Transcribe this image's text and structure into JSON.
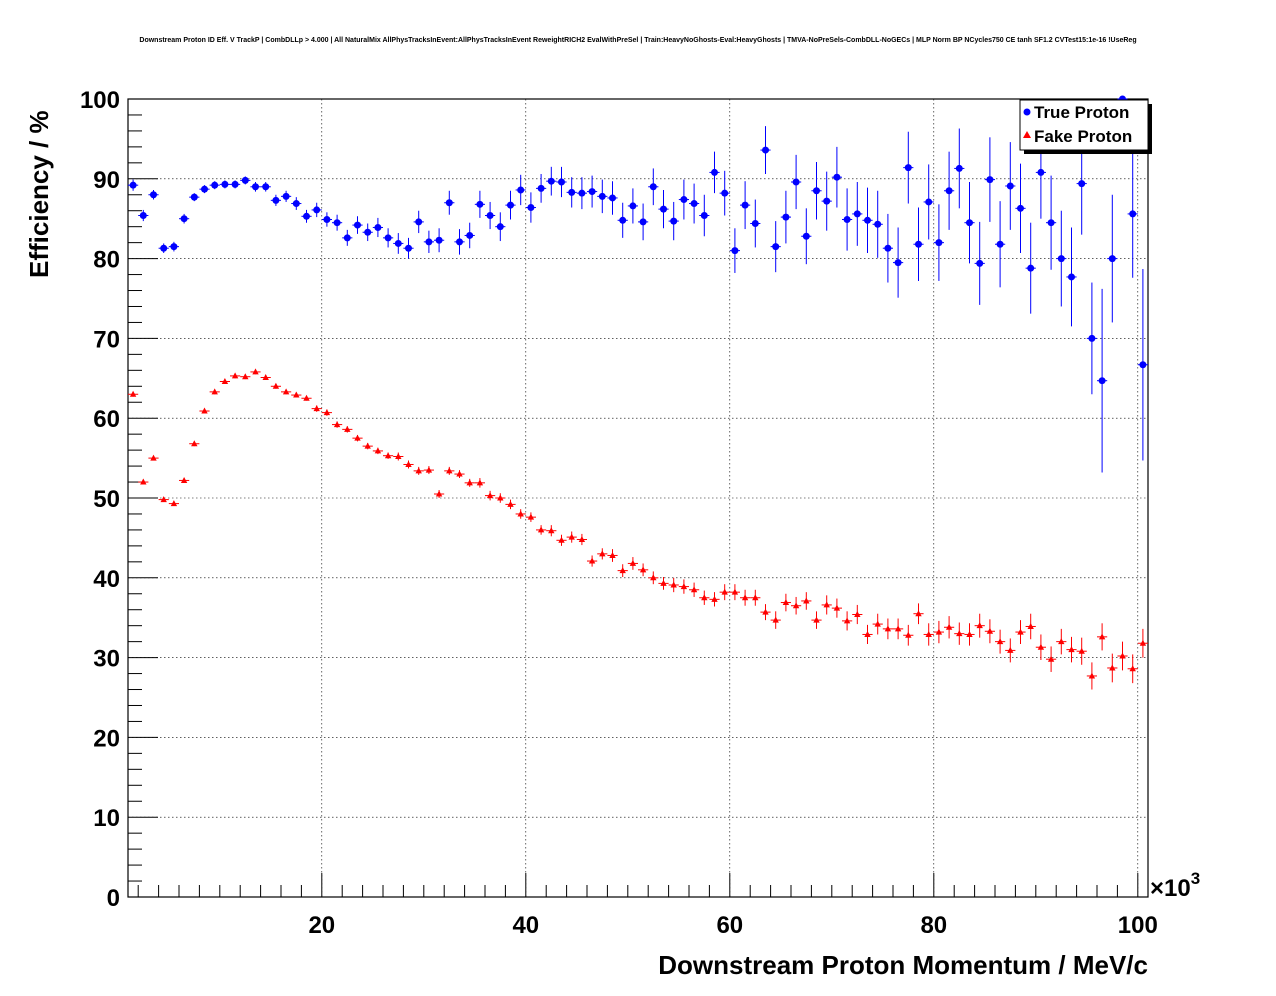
{
  "chart_data": {
    "type": "scatter",
    "title": "Downstream Proton ID Eff. V TrackP | CombDLLp > 4.000 | All NaturalMix AllPhysTracksInEvent:AllPhysTracksInEvent ReweightRICH2 EvalWithPreSel | Train:HeavyNoGhosts-Eval:HeavyGhosts | TMVA-NoPreSels-CombDLL-NoGECs | MLP Norm BP NCycles750 CE tanh SF1.2 CVTest15:1e-16 !UseReg",
    "xlabel": "Downstream Proton Momentum / MeV/c",
    "ylabel": "Efficiency / %",
    "x_multiplier": "×10",
    "x_multiplier_exp": "3",
    "xlim": [
      1000,
      101000
    ],
    "ylim": [
      0,
      100
    ],
    "x_ticks": [
      20,
      40,
      60,
      80,
      100
    ],
    "y_ticks": [
      0,
      10,
      20,
      30,
      40,
      50,
      60,
      70,
      80,
      90,
      100
    ],
    "grid": true,
    "legend_position": "top-right",
    "bin_width": 1000,
    "x_start": 1500,
    "series": [
      {
        "name": "True Proton",
        "color": "#0000ff",
        "marker": "circle",
        "values": [
          89.2,
          85.4,
          88.0,
          81.3,
          81.5,
          85.0,
          87.7,
          88.7,
          89.2,
          89.3,
          89.3,
          89.8,
          89.0,
          89.0,
          87.3,
          87.8,
          86.9,
          85.3,
          86.1,
          84.9,
          84.5,
          82.6,
          84.2,
          83.3,
          83.9,
          82.6,
          81.9,
          81.3,
          84.6,
          82.1,
          82.3,
          87.0,
          82.1,
          82.9,
          86.8,
          85.4,
          84.0,
          86.7,
          88.6,
          86.4,
          88.8,
          89.7,
          89.6,
          88.3,
          88.2,
          88.4,
          87.8,
          87.6,
          84.8,
          86.6,
          84.6,
          89.0,
          86.2,
          84.7,
          87.4,
          86.9,
          85.4,
          90.8,
          88.2,
          81.0,
          86.7,
          84.4,
          93.6,
          81.5,
          85.2,
          89.6,
          82.8,
          88.5,
          87.2,
          90.2,
          84.9,
          85.6,
          84.8,
          84.3,
          81.3,
          79.5,
          91.4,
          81.8,
          87.1,
          82.0,
          88.5,
          91.3,
          84.5,
          79.4,
          89.9,
          81.8,
          89.1,
          86.3,
          78.8,
          90.8,
          84.5,
          80.0,
          77.7,
          89.4,
          70.0,
          64.7,
          80.0,
          100.0,
          85.6,
          66.7
        ],
        "errors": [
          0.7,
          0.7,
          0.6,
          0.6,
          0.6,
          0.6,
          0.5,
          0.5,
          0.5,
          0.5,
          0.5,
          0.5,
          0.6,
          0.6,
          0.7,
          0.7,
          0.8,
          0.8,
          0.9,
          0.9,
          1.0,
          1.0,
          1.1,
          1.1,
          1.2,
          1.2,
          1.3,
          1.3,
          1.4,
          1.4,
          1.5,
          1.5,
          1.6,
          1.6,
          1.7,
          1.7,
          1.8,
          1.8,
          1.9,
          1.9,
          1.8,
          1.8,
          1.9,
          1.9,
          2.0,
          2.0,
          2.1,
          2.1,
          2.2,
          2.2,
          2.3,
          2.3,
          2.4,
          2.4,
          2.5,
          2.5,
          2.6,
          2.6,
          2.8,
          2.8,
          3.0,
          3.0,
          3.0,
          3.2,
          3.3,
          3.4,
          3.5,
          3.6,
          3.7,
          3.8,
          3.9,
          4.0,
          4.1,
          4.2,
          4.3,
          4.4,
          4.5,
          4.6,
          4.7,
          4.8,
          4.9,
          5.0,
          5.1,
          5.2,
          5.3,
          5.4,
          5.5,
          5.6,
          5.7,
          5.8,
          5.9,
          6.0,
          6.2,
          6.4,
          7.0,
          11.5,
          8.0,
          0.5,
          8.0,
          12.0
        ]
      },
      {
        "name": "Fake Proton",
        "color": "#ff0000",
        "marker": "triangle",
        "values": [
          63.0,
          52.0,
          55.0,
          49.8,
          49.3,
          52.2,
          56.8,
          60.9,
          63.3,
          64.6,
          65.3,
          65.2,
          65.8,
          65.1,
          64.0,
          63.3,
          62.9,
          62.5,
          61.2,
          60.7,
          59.2,
          58.6,
          57.5,
          56.5,
          55.9,
          55.3,
          55.2,
          54.2,
          53.4,
          53.5,
          50.5,
          53.4,
          53.0,
          51.9,
          51.9,
          50.3,
          50.0,
          49.2,
          48.0,
          47.6,
          46.0,
          45.9,
          44.7,
          45.1,
          44.8,
          42.1,
          43.0,
          42.8,
          40.9,
          41.8,
          41.0,
          40.0,
          39.3,
          39.1,
          38.9,
          38.5,
          37.5,
          37.3,
          38.2,
          38.2,
          37.5,
          37.5,
          35.7,
          34.7,
          36.9,
          36.5,
          37.1,
          34.7,
          36.6,
          36.2,
          34.6,
          35.4,
          32.9,
          34.2,
          33.6,
          33.6,
          32.8,
          35.5,
          32.9,
          33.2,
          33.8,
          33.0,
          32.9,
          34.0,
          33.3,
          32.0,
          30.9,
          33.2,
          33.9,
          31.3,
          29.8,
          32.0,
          31.0,
          30.8,
          27.7,
          32.6,
          28.7,
          30.2,
          28.6,
          31.8
        ],
        "errors": [
          0.3,
          0.3,
          0.3,
          0.3,
          0.3,
          0.3,
          0.3,
          0.3,
          0.3,
          0.3,
          0.3,
          0.3,
          0.3,
          0.3,
          0.3,
          0.3,
          0.3,
          0.3,
          0.4,
          0.4,
          0.4,
          0.4,
          0.4,
          0.4,
          0.4,
          0.4,
          0.5,
          0.5,
          0.5,
          0.5,
          0.5,
          0.5,
          0.5,
          0.5,
          0.6,
          0.6,
          0.6,
          0.6,
          0.6,
          0.6,
          0.6,
          0.7,
          0.7,
          0.7,
          0.7,
          0.7,
          0.7,
          0.8,
          0.8,
          0.8,
          0.8,
          0.8,
          0.8,
          0.9,
          0.9,
          0.9,
          0.9,
          0.9,
          1.0,
          1.0,
          1.0,
          1.0,
          1.0,
          1.1,
          1.1,
          1.1,
          1.1,
          1.1,
          1.2,
          1.2,
          1.2,
          1.2,
          1.2,
          1.3,
          1.3,
          1.3,
          1.3,
          1.3,
          1.4,
          1.4,
          1.4,
          1.4,
          1.4,
          1.5,
          1.5,
          1.5,
          1.5,
          1.5,
          1.6,
          1.6,
          1.6,
          1.6,
          1.6,
          1.7,
          1.7,
          1.7,
          1.8,
          1.8,
          1.8,
          1.8
        ]
      }
    ]
  }
}
